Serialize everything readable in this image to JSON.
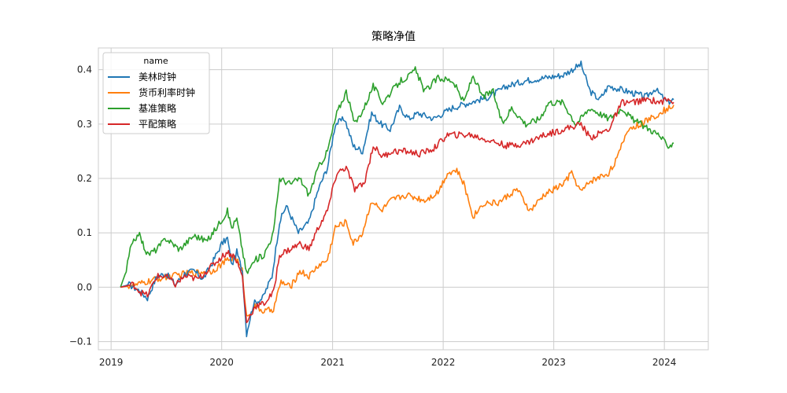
{
  "chart_data": {
    "type": "line",
    "title": "策略净值",
    "xlabel": "",
    "ylabel": "",
    "xlim": [
      "2018-11-20",
      "2024-05-25"
    ],
    "ylim": [
      -0.115,
      0.44
    ],
    "x_ticks": [
      "2019",
      "2020",
      "2021",
      "2022",
      "2023",
      "2024"
    ],
    "y_ticks": [
      -0.1,
      0.0,
      0.1,
      0.2,
      0.3,
      0.4
    ],
    "y_tick_labels": [
      "−0.1",
      "0.0",
      "0.1",
      "0.2",
      "0.3",
      "0.4"
    ],
    "grid": true,
    "legend": {
      "title": "name",
      "position": "top-left"
    },
    "series": [
      {
        "name": "美林时钟",
        "color": "#1f77b4",
        "points": [
          [
            "2019-02-01",
            0.0
          ],
          [
            "2019-03-01",
            0.005
          ],
          [
            "2019-04-01",
            -0.005
          ],
          [
            "2019-05-01",
            -0.02
          ],
          [
            "2019-06-01",
            0.02
          ],
          [
            "2019-07-01",
            0.025
          ],
          [
            "2019-08-01",
            0.005
          ],
          [
            "2019-09-01",
            0.025
          ],
          [
            "2019-10-01",
            0.03
          ],
          [
            "2019-11-01",
            0.015
          ],
          [
            "2019-12-01",
            0.045
          ],
          [
            "2020-01-01",
            0.08
          ],
          [
            "2020-01-20",
            0.09
          ],
          [
            "2020-02-03",
            0.04
          ],
          [
            "2020-02-20",
            0.065
          ],
          [
            "2020-03-09",
            0.03
          ],
          [
            "2020-03-23",
            -0.085
          ],
          [
            "2020-04-15",
            -0.03
          ],
          [
            "2020-05-15",
            -0.02
          ],
          [
            "2020-06-15",
            0.02
          ],
          [
            "2020-07-10",
            0.12
          ],
          [
            "2020-08-01",
            0.15
          ],
          [
            "2020-09-10",
            0.1
          ],
          [
            "2020-10-15",
            0.12
          ],
          [
            "2020-11-15",
            0.18
          ],
          [
            "2020-12-15",
            0.22
          ],
          [
            "2021-01-10",
            0.3
          ],
          [
            "2021-02-10",
            0.31
          ],
          [
            "2021-03-10",
            0.26
          ],
          [
            "2021-04-10",
            0.25
          ],
          [
            "2021-05-10",
            0.32
          ],
          [
            "2021-06-10",
            0.3
          ],
          [
            "2021-07-10",
            0.29
          ],
          [
            "2021-08-10",
            0.33
          ],
          [
            "2021-09-10",
            0.31
          ],
          [
            "2021-10-10",
            0.32
          ],
          [
            "2021-12-01",
            0.31
          ],
          [
            "2022-02-01",
            0.33
          ],
          [
            "2022-04-01",
            0.34
          ],
          [
            "2022-06-01",
            0.35
          ],
          [
            "2022-08-01",
            0.37
          ],
          [
            "2022-10-01",
            0.38
          ],
          [
            "2022-12-01",
            0.385
          ],
          [
            "2023-02-01",
            0.39
          ],
          [
            "2023-04-01",
            0.41
          ],
          [
            "2023-05-01",
            0.36
          ],
          [
            "2023-06-01",
            0.345
          ],
          [
            "2023-07-01",
            0.37
          ],
          [
            "2023-09-01",
            0.36
          ],
          [
            "2023-11-01",
            0.35
          ],
          [
            "2023-12-01",
            0.365
          ],
          [
            "2024-01-10",
            0.34
          ],
          [
            "2024-02-01",
            0.345
          ]
        ]
      },
      {
        "name": "货币利率时钟",
        "color": "#ff7f0e",
        "points": [
          [
            "2019-02-01",
            0.0
          ],
          [
            "2019-04-01",
            0.005
          ],
          [
            "2019-06-01",
            0.015
          ],
          [
            "2019-09-01",
            0.025
          ],
          [
            "2019-12-01",
            0.03
          ],
          [
            "2020-01-20",
            0.05
          ],
          [
            "2020-02-15",
            0.055
          ],
          [
            "2020-03-09",
            0.03
          ],
          [
            "2020-03-23",
            -0.055
          ],
          [
            "2020-04-20",
            -0.035
          ],
          [
            "2020-05-20",
            -0.045
          ],
          [
            "2020-06-20",
            -0.04
          ],
          [
            "2020-07-15",
            0.01
          ],
          [
            "2020-08-15",
            0.0
          ],
          [
            "2020-09-15",
            0.03
          ],
          [
            "2020-10-15",
            0.02
          ],
          [
            "2020-11-15",
            0.04
          ],
          [
            "2020-12-15",
            0.05
          ],
          [
            "2021-01-10",
            0.11
          ],
          [
            "2021-02-15",
            0.12
          ],
          [
            "2021-03-10",
            0.08
          ],
          [
            "2021-04-10",
            0.1
          ],
          [
            "2021-05-10",
            0.16
          ],
          [
            "2021-06-10",
            0.14
          ],
          [
            "2021-07-15",
            0.16
          ],
          [
            "2021-09-01",
            0.17
          ],
          [
            "2021-11-01",
            0.16
          ],
          [
            "2021-12-15",
            0.175
          ],
          [
            "2022-01-15",
            0.21
          ],
          [
            "2022-02-15",
            0.215
          ],
          [
            "2022-03-10",
            0.19
          ],
          [
            "2022-04-10",
            0.13
          ],
          [
            "2022-05-15",
            0.155
          ],
          [
            "2022-07-01",
            0.155
          ],
          [
            "2022-09-01",
            0.18
          ],
          [
            "2022-10-15",
            0.14
          ],
          [
            "2022-12-01",
            0.17
          ],
          [
            "2023-02-01",
            0.19
          ],
          [
            "2023-03-01",
            0.21
          ],
          [
            "2023-04-01",
            0.175
          ],
          [
            "2023-05-01",
            0.195
          ],
          [
            "2023-07-01",
            0.21
          ],
          [
            "2023-08-01",
            0.24
          ],
          [
            "2023-09-01",
            0.29
          ],
          [
            "2023-10-15",
            0.3
          ],
          [
            "2023-11-15",
            0.31
          ],
          [
            "2023-12-15",
            0.32
          ],
          [
            "2024-02-01",
            0.335
          ]
        ]
      },
      {
        "name": "基准策略",
        "color": "#2ca02c",
        "points": [
          [
            "2019-02-01",
            0.0
          ],
          [
            "2019-02-20",
            0.03
          ],
          [
            "2019-03-05",
            0.07
          ],
          [
            "2019-04-01",
            0.1
          ],
          [
            "2019-05-01",
            0.06
          ],
          [
            "2019-06-01",
            0.07
          ],
          [
            "2019-07-01",
            0.09
          ],
          [
            "2019-08-15",
            0.07
          ],
          [
            "2019-10-01",
            0.095
          ],
          [
            "2019-11-15",
            0.085
          ],
          [
            "2019-12-15",
            0.11
          ],
          [
            "2020-01-20",
            0.14
          ],
          [
            "2020-02-03",
            0.11
          ],
          [
            "2020-02-20",
            0.125
          ],
          [
            "2020-03-09",
            0.07
          ],
          [
            "2020-03-23",
            0.025
          ],
          [
            "2020-04-20",
            0.05
          ],
          [
            "2020-05-20",
            0.06
          ],
          [
            "2020-06-20",
            0.1
          ],
          [
            "2020-07-10",
            0.2
          ],
          [
            "2020-08-15",
            0.19
          ],
          [
            "2020-09-15",
            0.2
          ],
          [
            "2020-10-15",
            0.17
          ],
          [
            "2020-11-15",
            0.22
          ],
          [
            "2020-12-15",
            0.25
          ],
          [
            "2021-01-15",
            0.32
          ],
          [
            "2021-02-15",
            0.36
          ],
          [
            "2021-03-15",
            0.3
          ],
          [
            "2021-04-15",
            0.33
          ],
          [
            "2021-05-15",
            0.37
          ],
          [
            "2021-06-15",
            0.34
          ],
          [
            "2021-07-15",
            0.36
          ],
          [
            "2021-08-15",
            0.38
          ],
          [
            "2021-09-15",
            0.39
          ],
          [
            "2021-10-01",
            0.4
          ],
          [
            "2021-11-01",
            0.36
          ],
          [
            "2021-12-15",
            0.385
          ],
          [
            "2022-02-01",
            0.38
          ],
          [
            "2022-03-10",
            0.34
          ],
          [
            "2022-04-10",
            0.39
          ],
          [
            "2022-05-10",
            0.35
          ],
          [
            "2022-06-15",
            0.36
          ],
          [
            "2022-07-15",
            0.3
          ],
          [
            "2022-08-15",
            0.33
          ],
          [
            "2022-10-01",
            0.3
          ],
          [
            "2022-11-15",
            0.31
          ],
          [
            "2022-12-15",
            0.34
          ],
          [
            "2023-02-01",
            0.34
          ],
          [
            "2023-03-15",
            0.3
          ],
          [
            "2023-05-01",
            0.33
          ],
          [
            "2023-07-01",
            0.31
          ],
          [
            "2023-08-15",
            0.33
          ],
          [
            "2023-09-15",
            0.31
          ],
          [
            "2023-10-15",
            0.3
          ],
          [
            "2023-11-15",
            0.29
          ],
          [
            "2023-12-15",
            0.28
          ],
          [
            "2024-01-10",
            0.26
          ],
          [
            "2024-02-01",
            0.265
          ]
        ]
      },
      {
        "name": "平配策略",
        "color": "#d62728",
        "points": [
          [
            "2019-02-01",
            0.0
          ],
          [
            "2019-03-15",
            0.005
          ],
          [
            "2019-04-10",
            -0.01
          ],
          [
            "2019-05-01",
            -0.015
          ],
          [
            "2019-06-01",
            0.02
          ],
          [
            "2019-07-01",
            0.02
          ],
          [
            "2019-08-01",
            0.005
          ],
          [
            "2019-09-01",
            0.02
          ],
          [
            "2019-10-15",
            0.015
          ],
          [
            "2019-12-01",
            0.04
          ],
          [
            "2020-01-20",
            0.065
          ],
          [
            "2020-02-15",
            0.055
          ],
          [
            "2020-03-09",
            0.02
          ],
          [
            "2020-03-23",
            -0.065
          ],
          [
            "2020-04-20",
            -0.035
          ],
          [
            "2020-05-20",
            -0.03
          ],
          [
            "2020-06-20",
            -0.01
          ],
          [
            "2020-07-10",
            0.06
          ],
          [
            "2020-08-15",
            0.07
          ],
          [
            "2020-09-15",
            0.08
          ],
          [
            "2020-10-15",
            0.07
          ],
          [
            "2020-11-15",
            0.11
          ],
          [
            "2020-12-15",
            0.14
          ],
          [
            "2021-01-15",
            0.21
          ],
          [
            "2021-02-15",
            0.22
          ],
          [
            "2021-03-15",
            0.18
          ],
          [
            "2021-04-15",
            0.19
          ],
          [
            "2021-05-15",
            0.26
          ],
          [
            "2021-06-15",
            0.24
          ],
          [
            "2021-07-15",
            0.25
          ],
          [
            "2021-09-01",
            0.25
          ],
          [
            "2021-10-15",
            0.245
          ],
          [
            "2021-12-01",
            0.255
          ],
          [
            "2022-01-15",
            0.28
          ],
          [
            "2022-02-15",
            0.28
          ],
          [
            "2022-04-01",
            0.28
          ],
          [
            "2022-06-01",
            0.27
          ],
          [
            "2022-08-01",
            0.26
          ],
          [
            "2022-10-01",
            0.265
          ],
          [
            "2022-12-01",
            0.28
          ],
          [
            "2023-02-01",
            0.29
          ],
          [
            "2023-04-01",
            0.3
          ],
          [
            "2023-05-01",
            0.275
          ],
          [
            "2023-07-01",
            0.29
          ],
          [
            "2023-08-15",
            0.34
          ],
          [
            "2023-09-15",
            0.34
          ],
          [
            "2023-11-15",
            0.345
          ],
          [
            "2023-12-15",
            0.34
          ],
          [
            "2024-01-10",
            0.345
          ],
          [
            "2024-02-01",
            0.34
          ]
        ]
      }
    ]
  }
}
